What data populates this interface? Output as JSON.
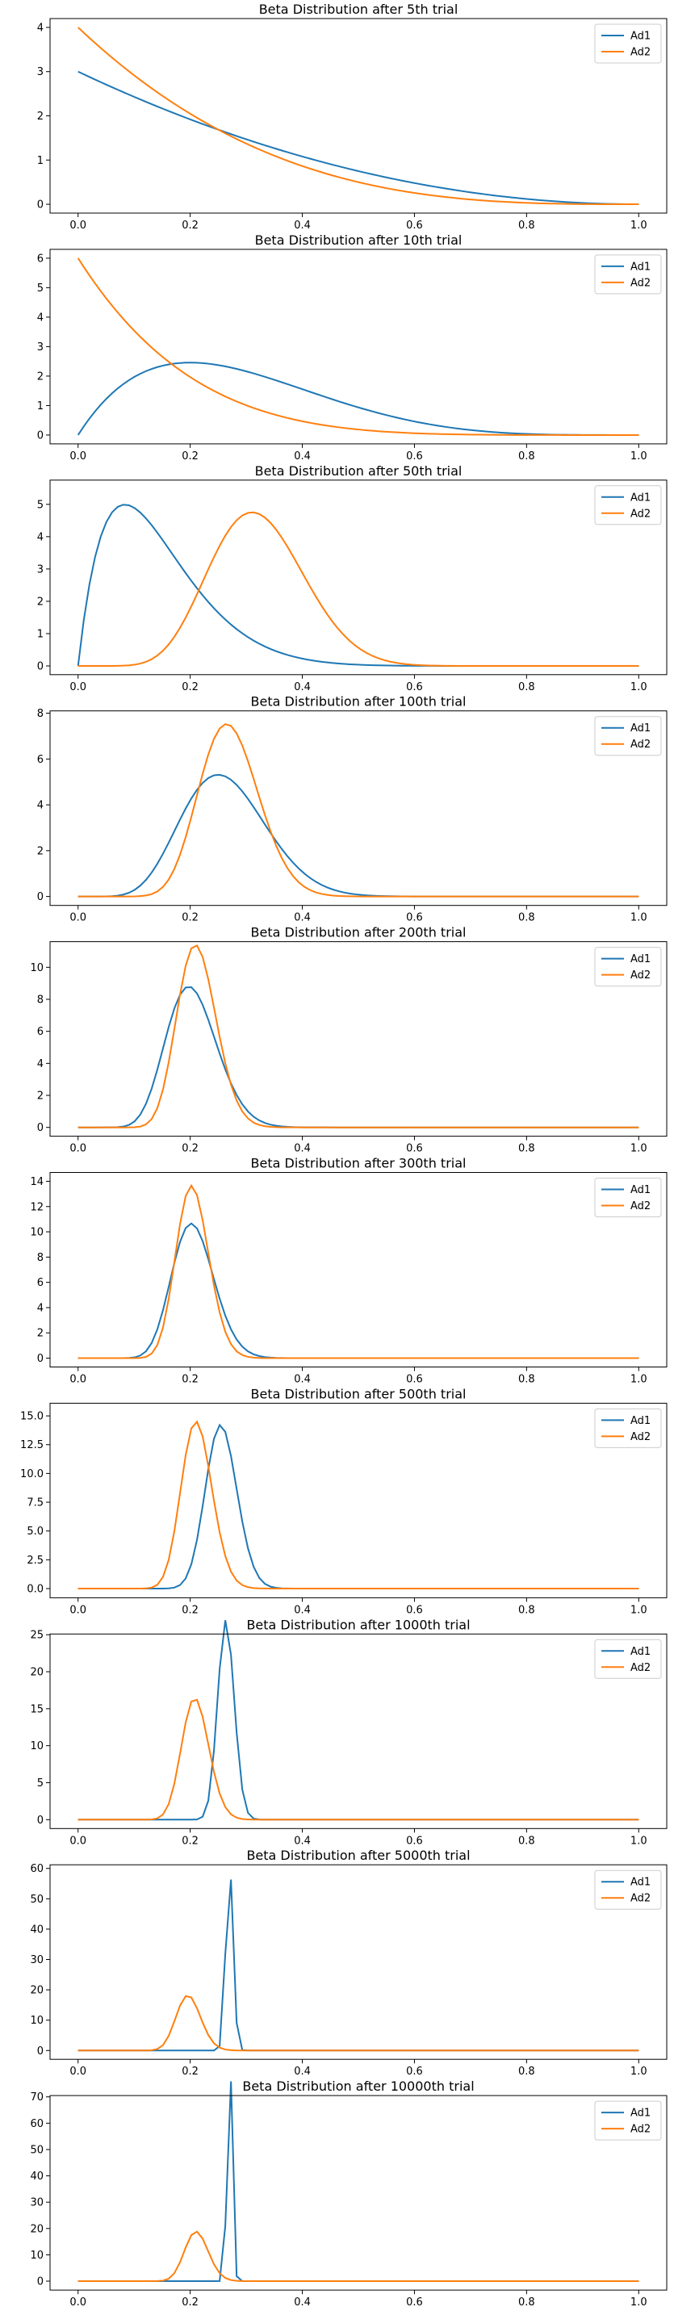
{
  "colors": {
    "ad1": "#1f77b4",
    "ad2": "#ff7f0e"
  },
  "chart_data": [
    {
      "type": "line",
      "title": "Beta Distribution after 5th trial",
      "x": [
        0,
        1
      ],
      "ylim": [
        -0.2,
        4.2
      ],
      "yticks": [
        "0",
        "1",
        "2",
        "3",
        "4"
      ],
      "ytick_values": [
        0,
        1,
        2,
        3,
        4
      ],
      "xticks": [
        "0.0",
        "0.2",
        "0.4",
        "0.6",
        "0.8",
        "1.0"
      ],
      "xtick_values": [
        0,
        0.2,
        0.4,
        0.6,
        0.8,
        1.0
      ],
      "legend": "top-right",
      "series": [
        {
          "name": "Ad1",
          "beta": [
            1,
            3
          ]
        },
        {
          "name": "Ad2",
          "beta": [
            1,
            4
          ]
        }
      ]
    },
    {
      "type": "line",
      "title": "Beta Distribution after 10th trial",
      "x": [
        0,
        1
      ],
      "ylim": [
        -0.3,
        6.3
      ],
      "yticks": [
        "0",
        "1",
        "2",
        "3",
        "4",
        "5",
        "6"
      ],
      "ytick_values": [
        0,
        1,
        2,
        3,
        4,
        5,
        6
      ],
      "xticks": [
        "0.0",
        "0.2",
        "0.4",
        "0.6",
        "0.8",
        "1.0"
      ],
      "xtick_values": [
        0,
        0.2,
        0.4,
        0.6,
        0.8,
        1.0
      ],
      "legend": "top-right",
      "series": [
        {
          "name": "Ad1",
          "beta": [
            2,
            5
          ]
        },
        {
          "name": "Ad2",
          "beta": [
            1,
            6
          ]
        }
      ]
    },
    {
      "type": "line",
      "title": "Beta Distribution after 50th trial",
      "x": [
        0,
        1
      ],
      "ylim": [
        -0.27,
        5.75
      ],
      "yticks": [
        "0",
        "1",
        "2",
        "3",
        "4",
        "5"
      ],
      "ytick_values": [
        0,
        1,
        2,
        3,
        4,
        5
      ],
      "xticks": [
        "0.0",
        "0.2",
        "0.4",
        "0.6",
        "0.8",
        "1.0"
      ],
      "xtick_values": [
        0,
        0.2,
        0.4,
        0.6,
        0.8,
        1.0
      ],
      "legend": "top-right",
      "series": [
        {
          "name": "Ad1",
          "beta": [
            2,
            12
          ]
        },
        {
          "name": "Ad2",
          "beta": [
            10,
            21
          ]
        }
      ]
    },
    {
      "type": "line",
      "title": "Beta Distribution after 100th trial",
      "x": [
        0,
        1
      ],
      "ylim": [
        -0.39,
        8.1
      ],
      "yticks": [
        "0",
        "2",
        "4",
        "6",
        "8"
      ],
      "ytick_values": [
        0,
        2,
        4,
        6,
        8
      ],
      "xticks": [
        "0.0",
        "0.2",
        "0.4",
        "0.6",
        "0.8",
        "1.0"
      ],
      "xtick_values": [
        0,
        0.2,
        0.4,
        0.6,
        0.8,
        1.0
      ],
      "legend": "top-right",
      "series": [
        {
          "name": "Ad1",
          "beta": [
            9,
            25
          ]
        },
        {
          "name": "Ad2",
          "beta": [
            19,
            51
          ]
        }
      ]
    },
    {
      "type": "line",
      "title": "Beta Distribution after 200th trial",
      "x": [
        0,
        1
      ],
      "ylim": [
        -0.55,
        11.6
      ],
      "yticks": [
        "0",
        "2",
        "4",
        "6",
        "8",
        "10"
      ],
      "ytick_values": [
        0,
        2,
        4,
        6,
        8,
        10
      ],
      "xticks": [
        "0.0",
        "0.2",
        "0.4",
        "0.6",
        "0.8",
        "1.0"
      ],
      "xtick_values": [
        0,
        0.2,
        0.4,
        0.6,
        0.8,
        1.0
      ],
      "legend": "top-right",
      "series": [
        {
          "name": "Ad1",
          "beta": [
            16,
            62
          ]
        },
        {
          "name": "Ad2",
          "beta": [
            29,
            107
          ]
        }
      ]
    },
    {
      "type": "line",
      "title": "Beta Distribution after 300th trial",
      "x": [
        0,
        1
      ],
      "ylim": [
        -0.7,
        14.7
      ],
      "yticks": [
        "0",
        "2",
        "4",
        "6",
        "8",
        "10",
        "12",
        "14"
      ],
      "ytick_values": [
        0,
        2,
        4,
        6,
        8,
        10,
        12,
        14
      ],
      "xticks": [
        "0.0",
        "0.2",
        "0.4",
        "0.6",
        "0.8",
        "1.0"
      ],
      "xtick_values": [
        0,
        0.2,
        0.4,
        0.6,
        0.8,
        1.0
      ],
      "legend": "top-right",
      "series": [
        {
          "name": "Ad1",
          "beta": [
            24,
            92
          ]
        },
        {
          "name": "Ad2",
          "beta": [
            39,
            151
          ]
        }
      ]
    },
    {
      "type": "line",
      "title": "Beta Distribution after 500th trial",
      "x": [
        0,
        1
      ],
      "ylim": [
        -0.8,
        16.1
      ],
      "yticks": [
        "0.0",
        "2.5",
        "5.0",
        "7.5",
        "10.0",
        "12.5",
        "15.0"
      ],
      "ytick_values": [
        0,
        2.5,
        5,
        7.5,
        10,
        12.5,
        15
      ],
      "xticks": [
        "0.0",
        "0.2",
        "0.4",
        "0.6",
        "0.8",
        "1.0"
      ],
      "xtick_values": [
        0,
        0.2,
        0.4,
        0.6,
        0.8,
        1.0
      ],
      "legend": "top-right",
      "series": [
        {
          "name": "Ad1",
          "beta": [
            62,
            180
          ]
        },
        {
          "name": "Ad2",
          "beta": [
            47,
            174
          ]
        }
      ]
    },
    {
      "type": "line",
      "title": "Beta Distribution after 1000th trial",
      "x": [
        0,
        1
      ],
      "ylim": [
        -1.2,
        25.1
      ],
      "yticks": [
        "0",
        "5",
        "10",
        "15",
        "20",
        "25"
      ],
      "ytick_values": [
        0,
        5,
        10,
        15,
        20,
        25
      ],
      "xticks": [
        "0.0",
        "0.2",
        "0.4",
        "0.6",
        "0.8",
        "1.0"
      ],
      "xtick_values": [
        0,
        0.2,
        0.4,
        0.6,
        0.8,
        1.0
      ],
      "legend": "top-right",
      "series": [
        {
          "name": "Ad1",
          "beta": [
            235,
            655
          ]
        },
        {
          "name": "Ad2",
          "beta": [
            59,
            222
          ]
        }
      ]
    },
    {
      "type": "line",
      "title": "Beta Distribution after 5000th trial",
      "x": [
        0,
        1
      ],
      "ylim": [
        -2.9,
        61.2
      ],
      "yticks": [
        "0",
        "10",
        "20",
        "30",
        "40",
        "50",
        "60"
      ],
      "ytick_values": [
        0,
        10,
        20,
        30,
        40,
        50,
        60
      ],
      "xticks": [
        "0.0",
        "0.2",
        "0.4",
        "0.6",
        "0.8",
        "1.0"
      ],
      "xtick_values": [
        0,
        0.2,
        0.4,
        0.6,
        0.8,
        1.0
      ],
      "legend": "top-right",
      "series": [
        {
          "name": "Ad1",
          "beta": [
            1262,
            3410
          ]
        },
        {
          "name": "Ad2",
          "beta": [
            65,
            264
          ]
        }
      ]
    },
    {
      "type": "line",
      "title": "Beta Distribution after 10000th trial",
      "x": [
        0,
        1
      ],
      "ylim": [
        -3.4,
        70.5
      ],
      "yticks": [
        "0",
        "10",
        "20",
        "30",
        "40",
        "50",
        "60",
        "70"
      ],
      "ytick_values": [
        0,
        10,
        20,
        30,
        40,
        50,
        60,
        70
      ],
      "xticks": [
        "0.0",
        "0.2",
        "0.4",
        "0.6",
        "0.8",
        "1.0"
      ],
      "xtick_values": [
        0,
        0.2,
        0.4,
        0.6,
        0.8,
        1.0
      ],
      "legend": "top-right",
      "series": [
        {
          "name": "Ad1",
          "beta": [
            2635,
            7115
          ]
        },
        {
          "name": "Ad2",
          "beta": [
            79,
            294
          ]
        }
      ]
    }
  ]
}
